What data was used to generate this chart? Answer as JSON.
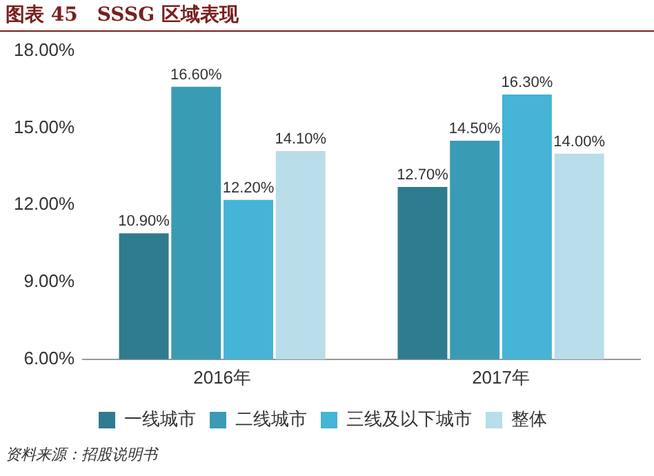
{
  "chart_data": {
    "type": "bar",
    "title": "图表 45　SSSG 区域表现",
    "categories": [
      "2016年",
      "2017年"
    ],
    "series": [
      {
        "name": "一线城市",
        "color": "#2f7c8f",
        "values": [
          10.9,
          12.7
        ],
        "value_labels": [
          "10.90%",
          "12.70%"
        ]
      },
      {
        "name": "二线城市",
        "color": "#3a9bb5",
        "values": [
          16.6,
          14.5
        ],
        "value_labels": [
          "16.60%",
          "14.50%"
        ]
      },
      {
        "name": "三线及以下城市",
        "color": "#45b4d6",
        "values": [
          12.2,
          16.3
        ],
        "value_labels": [
          "12.20%",
          "16.30%"
        ]
      },
      {
        "name": "整体",
        "color": "#b9dde9",
        "values": [
          14.1,
          14.0
        ],
        "value_labels": [
          "14.10%",
          "14.00%"
        ]
      }
    ],
    "ylim": [
      6,
      18
    ],
    "yticks": [
      {
        "value": 6,
        "label": "6.00%"
      },
      {
        "value": 9,
        "label": "9.00%"
      },
      {
        "value": 12,
        "label": "12.00%"
      },
      {
        "value": 15,
        "label": "15.00%"
      },
      {
        "value": 18,
        "label": "18.00%"
      }
    ],
    "grid": false,
    "legend": "bottom",
    "annotations": [
      "资料来源：招股说明书"
    ]
  }
}
